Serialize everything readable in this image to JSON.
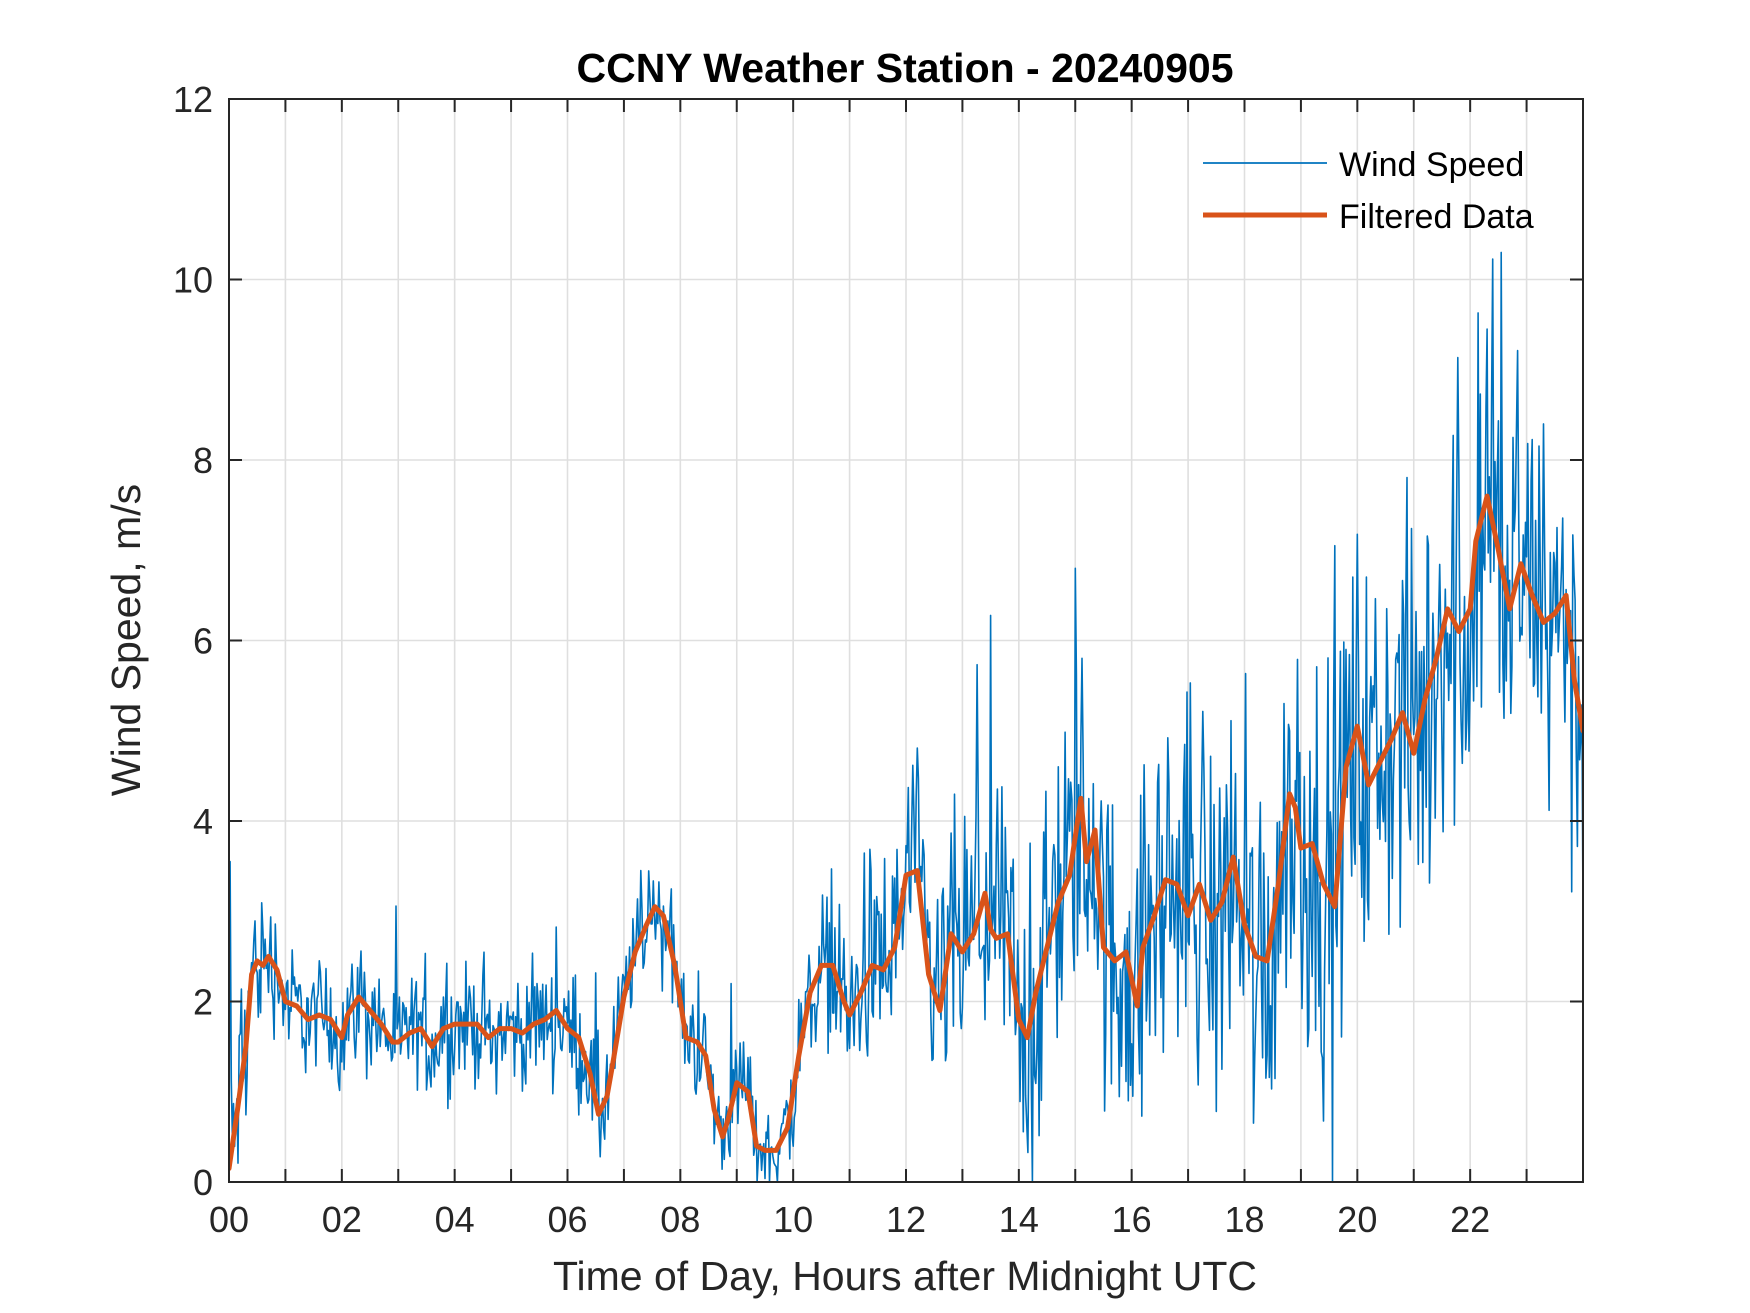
{
  "chart_data": {
    "type": "line",
    "title": "CCNY Weather Station - 20240905",
    "xlabel": "Time of Day, Hours after Midnight UTC",
    "ylabel": "Wind Speed, m/s",
    "xlim": [
      0,
      24
    ],
    "ylim": [
      0,
      12
    ],
    "xticks": [
      0,
      2,
      4,
      6,
      8,
      10,
      12,
      14,
      16,
      18,
      20,
      22
    ],
    "xtick_labels": [
      "00",
      "02",
      "04",
      "06",
      "08",
      "10",
      "12",
      "14",
      "16",
      "18",
      "20",
      "22"
    ],
    "xminor_grid": [
      1,
      3,
      5,
      7,
      9,
      11,
      13,
      15,
      17,
      19,
      21,
      23
    ],
    "yticks": [
      0,
      2,
      4,
      6,
      8,
      10,
      12
    ],
    "ytick_labels": [
      "0",
      "2",
      "4",
      "6",
      "8",
      "10",
      "12"
    ],
    "grid": true,
    "legend": {
      "placement": "top-right",
      "entries": [
        "Wind Speed",
        "Filtered Data"
      ]
    },
    "colors": {
      "wind_speed": "#0072BD",
      "filtered": "#D95319",
      "axis": "#262626",
      "grid": "#DFDFDF"
    },
    "series": [
      {
        "name": "Wind Speed",
        "description": "Raw ~1-minute wind speed samples; high-frequency noise around the filtered trend, peak ~10.3 m/s near 22.5 h",
        "sample_interval_hours": 0.02,
        "noise_amplitude_envelope": {
          "x": [
            0,
            0.5,
            1,
            4,
            6,
            6.5,
            7.5,
            8.5,
            9.5,
            10,
            11,
            12,
            14,
            16,
            18,
            20,
            21,
            22,
            23,
            24
          ],
          "amplitude": [
            1.2,
            1.0,
            0.7,
            0.7,
            0.7,
            0.9,
            0.5,
            0.7,
            0.5,
            0.8,
            1.0,
            1.4,
            1.9,
            2.2,
            2.4,
            2.5,
            2.6,
            2.6,
            2.4,
            2.2
          ]
        },
        "notable_points": [
          {
            "x": 0.02,
            "y": 3.55
          },
          {
            "x": 7.3,
            "y": 3.45
          },
          {
            "x": 8.9,
            "y": 2.2
          },
          {
            "x": 15.0,
            "y": 6.8
          },
          {
            "x": 19.6,
            "y": 7.05
          },
          {
            "x": 22.3,
            "y": 9.45
          },
          {
            "x": 22.55,
            "y": 10.3
          },
          {
            "x": 23.3,
            "y": 8.4
          },
          {
            "x": 24.0,
            "y": 3.0
          }
        ]
      },
      {
        "name": "Filtered Data",
        "x": [
          0,
          0.15,
          0.3,
          0.4,
          0.5,
          0.6,
          0.7,
          0.85,
          1.0,
          1.2,
          1.4,
          1.6,
          1.8,
          2.0,
          2.1,
          2.3,
          2.5,
          2.7,
          2.9,
          3.0,
          3.2,
          3.4,
          3.6,
          3.8,
          4.0,
          4.2,
          4.4,
          4.6,
          4.8,
          5.0,
          5.2,
          5.4,
          5.6,
          5.8,
          6.0,
          6.2,
          6.4,
          6.55,
          6.7,
          6.8,
          7.0,
          7.2,
          7.4,
          7.55,
          7.7,
          7.9,
          8.1,
          8.3,
          8.45,
          8.6,
          8.75,
          8.85,
          9.0,
          9.1,
          9.2,
          9.35,
          9.5,
          9.7,
          9.9,
          10.1,
          10.3,
          10.5,
          10.7,
          10.9,
          11.0,
          11.2,
          11.4,
          11.6,
          11.8,
          12.0,
          12.2,
          12.4,
          12.6,
          12.8,
          13.0,
          13.2,
          13.4,
          13.5,
          13.6,
          13.8,
          14.0,
          14.15,
          14.3,
          14.5,
          14.7,
          14.9,
          15.1,
          15.2,
          15.35,
          15.5,
          15.7,
          15.9,
          16.1,
          16.2,
          16.4,
          16.6,
          16.8,
          17.0,
          17.2,
          17.4,
          17.6,
          17.8,
          18.0,
          18.2,
          18.4,
          18.6,
          18.8,
          18.9,
          19.0,
          19.2,
          19.4,
          19.6,
          19.8,
          20.0,
          20.2,
          20.4,
          20.6,
          20.8,
          21.0,
          21.2,
          21.4,
          21.6,
          21.8,
          22.0,
          22.1,
          22.3,
          22.5,
          22.7,
          22.9,
          23.1,
          23.3,
          23.5,
          23.7,
          23.85,
          24.0
        ],
        "y": [
          0.15,
          0.8,
          1.5,
          2.3,
          2.45,
          2.4,
          2.5,
          2.35,
          2.0,
          1.95,
          1.8,
          1.85,
          1.8,
          1.6,
          1.85,
          2.05,
          1.9,
          1.75,
          1.55,
          1.55,
          1.65,
          1.7,
          1.5,
          1.7,
          1.75,
          1.75,
          1.75,
          1.6,
          1.7,
          1.7,
          1.65,
          1.75,
          1.8,
          1.9,
          1.7,
          1.6,
          1.2,
          0.75,
          0.95,
          1.3,
          2.05,
          2.55,
          2.85,
          3.05,
          2.95,
          2.4,
          1.6,
          1.55,
          1.4,
          0.8,
          0.5,
          0.7,
          1.1,
          1.05,
          1.0,
          0.4,
          0.35,
          0.35,
          0.6,
          1.4,
          2.1,
          2.4,
          2.4,
          2.0,
          1.85,
          2.1,
          2.4,
          2.35,
          2.6,
          3.4,
          3.45,
          2.3,
          1.9,
          2.75,
          2.55,
          2.75,
          3.2,
          2.8,
          2.7,
          2.75,
          1.8,
          1.6,
          2.1,
          2.6,
          3.1,
          3.4,
          4.25,
          3.55,
          3.9,
          2.6,
          2.45,
          2.55,
          1.95,
          2.6,
          2.95,
          3.35,
          3.3,
          2.95,
          3.3,
          2.9,
          3.1,
          3.6,
          2.85,
          2.5,
          2.45,
          3.3,
          4.3,
          4.15,
          3.7,
          3.75,
          3.3,
          3.05,
          4.6,
          5.05,
          4.4,
          4.65,
          4.9,
          5.2,
          4.75,
          5.35,
          5.8,
          6.35,
          6.1,
          6.35,
          7.1,
          7.6,
          7.0,
          6.35,
          6.85,
          6.5,
          6.2,
          6.3,
          6.5,
          5.55,
          5.0
        ]
      }
    ]
  }
}
